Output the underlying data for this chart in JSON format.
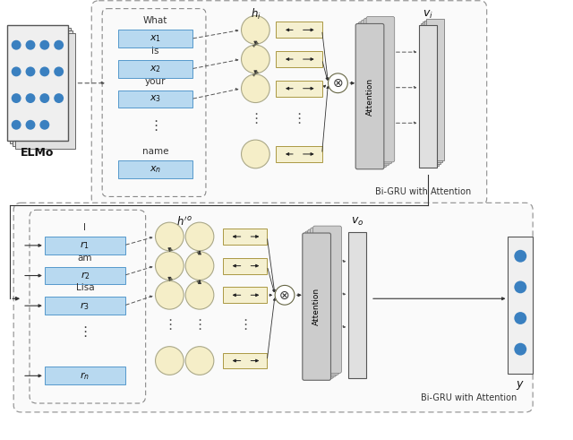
{
  "fig_width": 6.4,
  "fig_height": 4.91,
  "bg_color": "#ffffff",
  "elmo_label": "ELMo",
  "top_bigru_label": "Bi-GRU with Attention",
  "bot_bigru_label": "Bi-GRU with Attention",
  "vi_label": "$v_i$",
  "vo_label": "$v_o$",
  "y_label": "$y$",
  "h_top_label": "$h_i$",
  "h_bot_label": "$h^{\\prime}_o$",
  "attention_label": "Attention",
  "light_blue": "#b8d9f0",
  "cream": "#f5f0d0",
  "arrow_color": "#222222",
  "dashed_color": "#666666",
  "top_words": [
    "What",
    "is",
    "your",
    "",
    "name"
  ],
  "top_vars": [
    "x_1",
    "x_2",
    "x_3",
    "",
    "x_n"
  ],
  "bot_words": [
    "I",
    "am",
    "Lisa",
    "",
    ""
  ],
  "bot_vars": [
    "r_1",
    "r_2",
    "r_3",
    "",
    "r_n"
  ]
}
